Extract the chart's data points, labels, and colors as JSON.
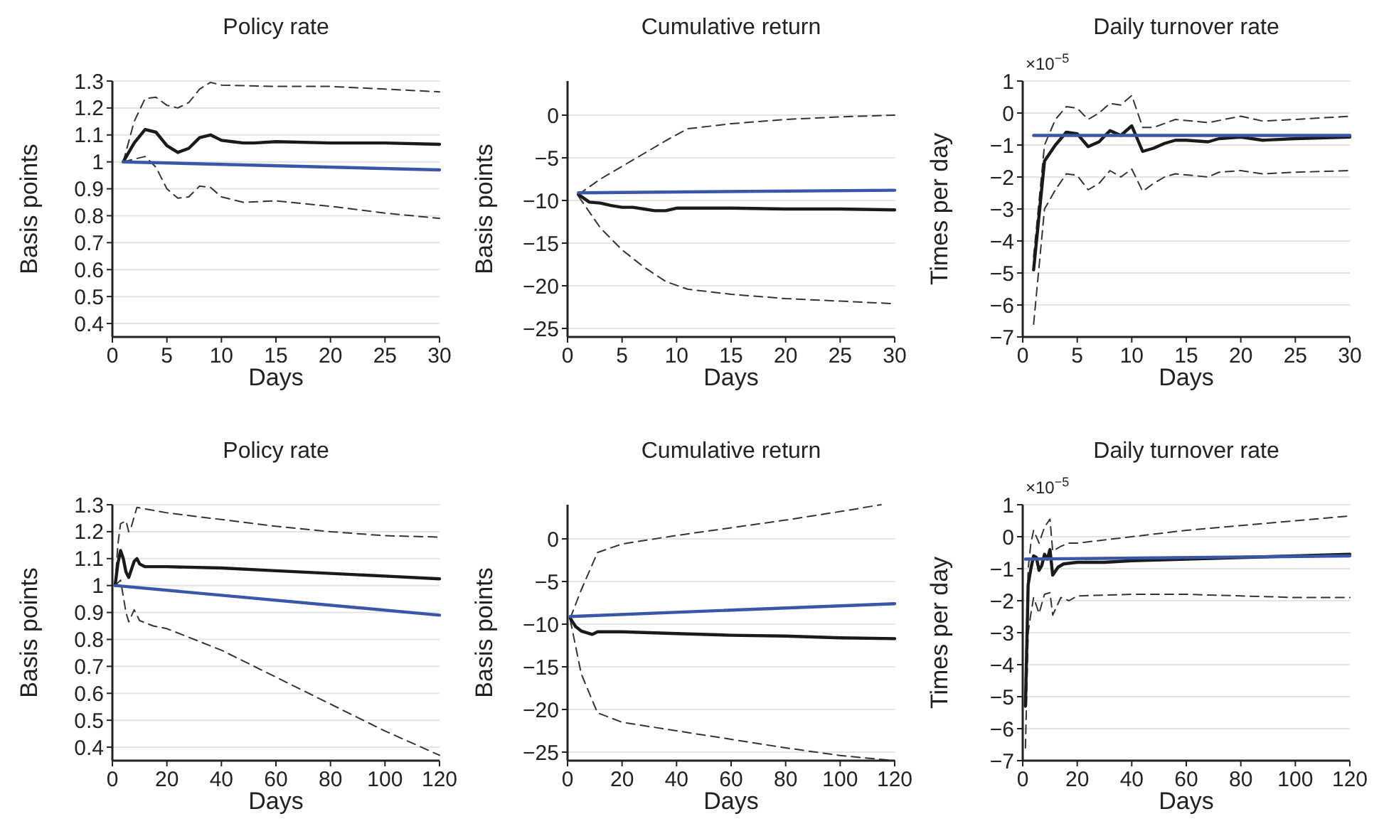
{
  "chart_data": [
    {
      "type": "line",
      "title": "Policy rate",
      "xlabel": "Days",
      "ylabel": "Basis points",
      "xlim": [
        0,
        30
      ],
      "xticks": [
        0,
        5,
        10,
        15,
        20,
        25,
        30
      ],
      "ylim": [
        0.35,
        1.3
      ],
      "yticks": [
        0.4,
        0.5,
        0.6,
        0.7,
        0.8,
        0.9,
        1,
        1.1,
        1.2,
        1.3
      ],
      "grid": "y",
      "series": [
        {
          "color": "#333333",
          "line_style": "dashed",
          "x": [
            1,
            2,
            3,
            4,
            5,
            6,
            7,
            8,
            9,
            10,
            15,
            20,
            25,
            30
          ],
          "values": [
            1.0,
            1.15,
            1.235,
            1.24,
            1.21,
            1.2,
            1.22,
            1.27,
            1.295,
            1.285,
            1.28,
            1.28,
            1.27,
            1.26
          ]
        },
        {
          "color": "#333333",
          "line_style": "dashed",
          "x": [
            1,
            2,
            3,
            4,
            5,
            6,
            7,
            8,
            9,
            10,
            12,
            15,
            20,
            25,
            30
          ],
          "values": [
            1.0,
            1.01,
            1.02,
            0.98,
            0.9,
            0.865,
            0.87,
            0.91,
            0.905,
            0.87,
            0.85,
            0.855,
            0.835,
            0.81,
            0.79
          ]
        },
        {
          "color": "#1a1a1a",
          "line_style": "solid",
          "x": [
            1,
            2,
            3,
            4,
            5,
            6,
            7,
            8,
            9,
            10,
            11,
            12,
            13,
            15,
            20,
            25,
            30
          ],
          "values": [
            1.0,
            1.07,
            1.12,
            1.11,
            1.06,
            1.035,
            1.05,
            1.09,
            1.1,
            1.08,
            1.075,
            1.07,
            1.07,
            1.075,
            1.07,
            1.07,
            1.065
          ]
        },
        {
          "color": "#3a56a8",
          "line_style": "solid",
          "x": [
            1,
            30
          ],
          "values": [
            1.0,
            0.97
          ]
        }
      ]
    },
    {
      "type": "line",
      "title": "Cumulative return",
      "xlabel": "Days",
      "ylabel": "Basis points",
      "xlim": [
        0,
        30
      ],
      "xticks": [
        0,
        5,
        10,
        15,
        20,
        25,
        30
      ],
      "ylim": [
        -26,
        4
      ],
      "yticks": [
        -25,
        -20,
        -15,
        -10,
        -5,
        0
      ],
      "grid": "y",
      "series": [
        {
          "color": "#333333",
          "line_style": "dashed",
          "x": [
            1,
            3,
            5,
            7,
            9,
            11,
            15,
            20,
            25,
            30
          ],
          "values": [
            -9.3,
            -7.5,
            -6,
            -4.5,
            -3,
            -1.6,
            -1,
            -0.5,
            -0.2,
            0
          ]
        },
        {
          "color": "#333333",
          "line_style": "dashed",
          "x": [
            1,
            3,
            5,
            7,
            9,
            11,
            15,
            20,
            25,
            30
          ],
          "values": [
            -9.5,
            -13.2,
            -15.8,
            -17.8,
            -19.5,
            -20.4,
            -21,
            -21.5,
            -21.8,
            -22.1
          ]
        },
        {
          "color": "#1a1a1a",
          "line_style": "solid",
          "x": [
            1,
            2,
            3,
            4,
            5,
            6,
            7,
            8,
            9,
            10,
            15,
            20,
            25,
            30
          ],
          "values": [
            -9.3,
            -10.2,
            -10.3,
            -10.6,
            -10.8,
            -10.8,
            -11.0,
            -11.2,
            -11.2,
            -10.9,
            -10.9,
            -11.0,
            -11.0,
            -11.1
          ]
        },
        {
          "color": "#3a56a8",
          "line_style": "solid",
          "x": [
            1,
            30
          ],
          "values": [
            -9.1,
            -8.8
          ]
        }
      ]
    },
    {
      "type": "line",
      "title": "Daily turnover rate",
      "xlabel": "Days",
      "ylabel": "Times per day",
      "annotations": [
        "×10$^{−5}$"
      ],
      "xlim": [
        0,
        30
      ],
      "xticks": [
        0,
        5,
        10,
        15,
        20,
        25,
        30
      ],
      "ylim": [
        -7,
        1
      ],
      "yticks": [
        -7,
        -6,
        -5,
        -4,
        -3,
        -2,
        -1,
        0,
        1
      ],
      "grid": "y",
      "series": [
        {
          "color": "#333333",
          "line_style": "dashed",
          "x": [
            1,
            2,
            3,
            4,
            5,
            6,
            7,
            8,
            9,
            10,
            11,
            12,
            14,
            17,
            20,
            22,
            25,
            30
          ],
          "values": [
            -4.5,
            -1.0,
            -0.2,
            0.2,
            0.15,
            -0.2,
            0,
            0.3,
            0.25,
            0.55,
            -0.45,
            -0.45,
            -0.2,
            -0.3,
            -0.1,
            -0.25,
            -0.2,
            -0.1
          ]
        },
        {
          "color": "#333333",
          "line_style": "dashed",
          "x": [
            1,
            2,
            3,
            4,
            5,
            6,
            7,
            8,
            9,
            10,
            11,
            12,
            13,
            14,
            17,
            18,
            20,
            22,
            25,
            30
          ],
          "values": [
            -6.6,
            -3.0,
            -2.4,
            -1.9,
            -1.95,
            -2.4,
            -2.2,
            -1.8,
            -2.0,
            -1.75,
            -2.45,
            -2.2,
            -2.0,
            -1.9,
            -2.0,
            -1.85,
            -1.8,
            -1.9,
            -1.85,
            -1.8
          ]
        },
        {
          "color": "#1a1a1a",
          "line_style": "solid",
          "x": [
            1,
            2,
            3,
            4,
            5,
            6,
            7,
            8,
            9,
            10,
            11,
            12,
            13,
            14,
            15,
            17,
            18,
            20,
            22,
            25,
            30
          ],
          "values": [
            -4.9,
            -1.5,
            -1.0,
            -0.6,
            -0.65,
            -1.05,
            -0.9,
            -0.55,
            -0.7,
            -0.4,
            -1.2,
            -1.1,
            -0.95,
            -0.85,
            -0.85,
            -0.9,
            -0.8,
            -0.75,
            -0.85,
            -0.8,
            -0.75
          ]
        },
        {
          "color": "#3a56a8",
          "line_style": "solid",
          "x": [
            1,
            30
          ],
          "values": [
            -0.7,
            -0.7
          ]
        }
      ]
    },
    {
      "type": "line",
      "title": "Policy rate",
      "xlabel": "Days",
      "ylabel": "Basis points",
      "xlim": [
        0,
        120
      ],
      "xticks": [
        0,
        20,
        40,
        60,
        80,
        100,
        120
      ],
      "ylim": [
        0.35,
        1.3
      ],
      "yticks": [
        0.4,
        0.5,
        0.6,
        0.7,
        0.8,
        0.9,
        1,
        1.1,
        1.2,
        1.3
      ],
      "grid": "y",
      "series": [
        {
          "color": "#333333",
          "line_style": "dashed",
          "x": [
            1,
            2,
            3,
            5,
            6,
            7,
            9,
            20,
            40,
            60,
            80,
            100,
            120
          ],
          "values": [
            1.0,
            1.15,
            1.23,
            1.24,
            1.2,
            1.22,
            1.29,
            1.27,
            1.245,
            1.22,
            1.2,
            1.185,
            1.18
          ]
        },
        {
          "color": "#333333",
          "line_style": "dashed",
          "x": [
            1,
            3,
            5,
            6,
            8,
            10,
            15,
            20,
            40,
            60,
            80,
            100,
            120
          ],
          "values": [
            1.0,
            1.02,
            0.9,
            0.865,
            0.91,
            0.87,
            0.85,
            0.84,
            0.76,
            0.66,
            0.56,
            0.46,
            0.37
          ]
        },
        {
          "color": "#1a1a1a",
          "line_style": "solid",
          "x": [
            1,
            2,
            3,
            4,
            5,
            6,
            8,
            9,
            10,
            12,
            20,
            40,
            60,
            80,
            100,
            120
          ],
          "values": [
            1.0,
            1.08,
            1.13,
            1.1,
            1.05,
            1.03,
            1.09,
            1.1,
            1.08,
            1.07,
            1.07,
            1.065,
            1.055,
            1.045,
            1.035,
            1.025
          ]
        },
        {
          "color": "#3a56a8",
          "line_style": "solid",
          "x": [
            1,
            120
          ],
          "values": [
            1.0,
            0.89
          ]
        }
      ]
    },
    {
      "type": "line",
      "title": "Cumulative return",
      "xlabel": "Days",
      "ylabel": "Basis points",
      "xlim": [
        0,
        120
      ],
      "xticks": [
        0,
        20,
        40,
        60,
        80,
        100,
        120
      ],
      "ylim": [
        -26,
        4
      ],
      "yticks": [
        -25,
        -20,
        -15,
        -10,
        -5,
        0
      ],
      "grid": "y",
      "series": [
        {
          "color": "#333333",
          "line_style": "dashed",
          "x": [
            1,
            5,
            11,
            20,
            40,
            60,
            80,
            100,
            115
          ],
          "values": [
            -9.3,
            -6,
            -1.6,
            -0.6,
            0.4,
            1.3,
            2.2,
            3.2,
            4.0
          ]
        },
        {
          "color": "#333333",
          "line_style": "dashed",
          "x": [
            1,
            5,
            11,
            20,
            40,
            60,
            80,
            100,
            120
          ],
          "values": [
            -9.5,
            -15.8,
            -20.4,
            -21.5,
            -22.5,
            -23.5,
            -24.5,
            -25.4,
            -26
          ]
        },
        {
          "color": "#1a1a1a",
          "line_style": "solid",
          "x": [
            1,
            3,
            5,
            9,
            11,
            20,
            40,
            60,
            80,
            100,
            120
          ],
          "values": [
            -9.3,
            -10.3,
            -10.8,
            -11.2,
            -10.9,
            -10.9,
            -11.1,
            -11.3,
            -11.4,
            -11.6,
            -11.7
          ]
        },
        {
          "color": "#3a56a8",
          "line_style": "solid",
          "x": [
            1,
            120
          ],
          "values": [
            -9.1,
            -7.6
          ]
        }
      ]
    },
    {
      "type": "line",
      "title": "Daily turnover rate",
      "xlabel": "Days",
      "ylabel": "Times per day",
      "annotations": [
        "×10$^{−5}$"
      ],
      "xlim": [
        0,
        120
      ],
      "xticks": [
        0,
        20,
        40,
        60,
        80,
        100,
        120
      ],
      "ylim": [
        -7,
        1
      ],
      "yticks": [
        -7,
        -6,
        -5,
        -4,
        -3,
        -2,
        -1,
        0,
        1
      ],
      "grid": "y",
      "series": [
        {
          "color": "#333333",
          "line_style": "dashed",
          "x": [
            1,
            2,
            3,
            4,
            6,
            8,
            10,
            11,
            14,
            17,
            20,
            40,
            60,
            80,
            100,
            120
          ],
          "values": [
            -4.5,
            -1.0,
            -0.2,
            0.2,
            -0.2,
            0.3,
            0.55,
            -0.45,
            -0.3,
            -0.2,
            -0.2,
            0,
            0.2,
            0.35,
            0.5,
            0.65
          ]
        },
        {
          "color": "#333333",
          "line_style": "dashed",
          "x": [
            1,
            2,
            3,
            4,
            6,
            8,
            10,
            11,
            14,
            17,
            20,
            40,
            60,
            80,
            100,
            120
          ],
          "values": [
            -6.6,
            -3.0,
            -2.4,
            -1.9,
            -2.4,
            -1.8,
            -1.75,
            -2.45,
            -1.9,
            -2.0,
            -1.85,
            -1.8,
            -1.8,
            -1.85,
            -1.9,
            -1.9
          ]
        },
        {
          "color": "#1a1a1a",
          "line_style": "solid",
          "x": [
            1,
            2,
            3,
            4,
            5,
            6,
            7,
            8,
            9,
            10,
            11,
            13,
            15,
            20,
            30,
            40,
            60,
            80,
            100,
            120
          ],
          "values": [
            -5.3,
            -1.5,
            -1.0,
            -0.6,
            -0.65,
            -1.05,
            -0.9,
            -0.55,
            -0.7,
            -0.4,
            -1.2,
            -0.95,
            -0.85,
            -0.8,
            -0.8,
            -0.75,
            -0.7,
            -0.65,
            -0.6,
            -0.55
          ]
        },
        {
          "color": "#3a56a8",
          "line_style": "solid",
          "x": [
            1,
            120
          ],
          "values": [
            -0.7,
            -0.6
          ]
        }
      ]
    }
  ]
}
